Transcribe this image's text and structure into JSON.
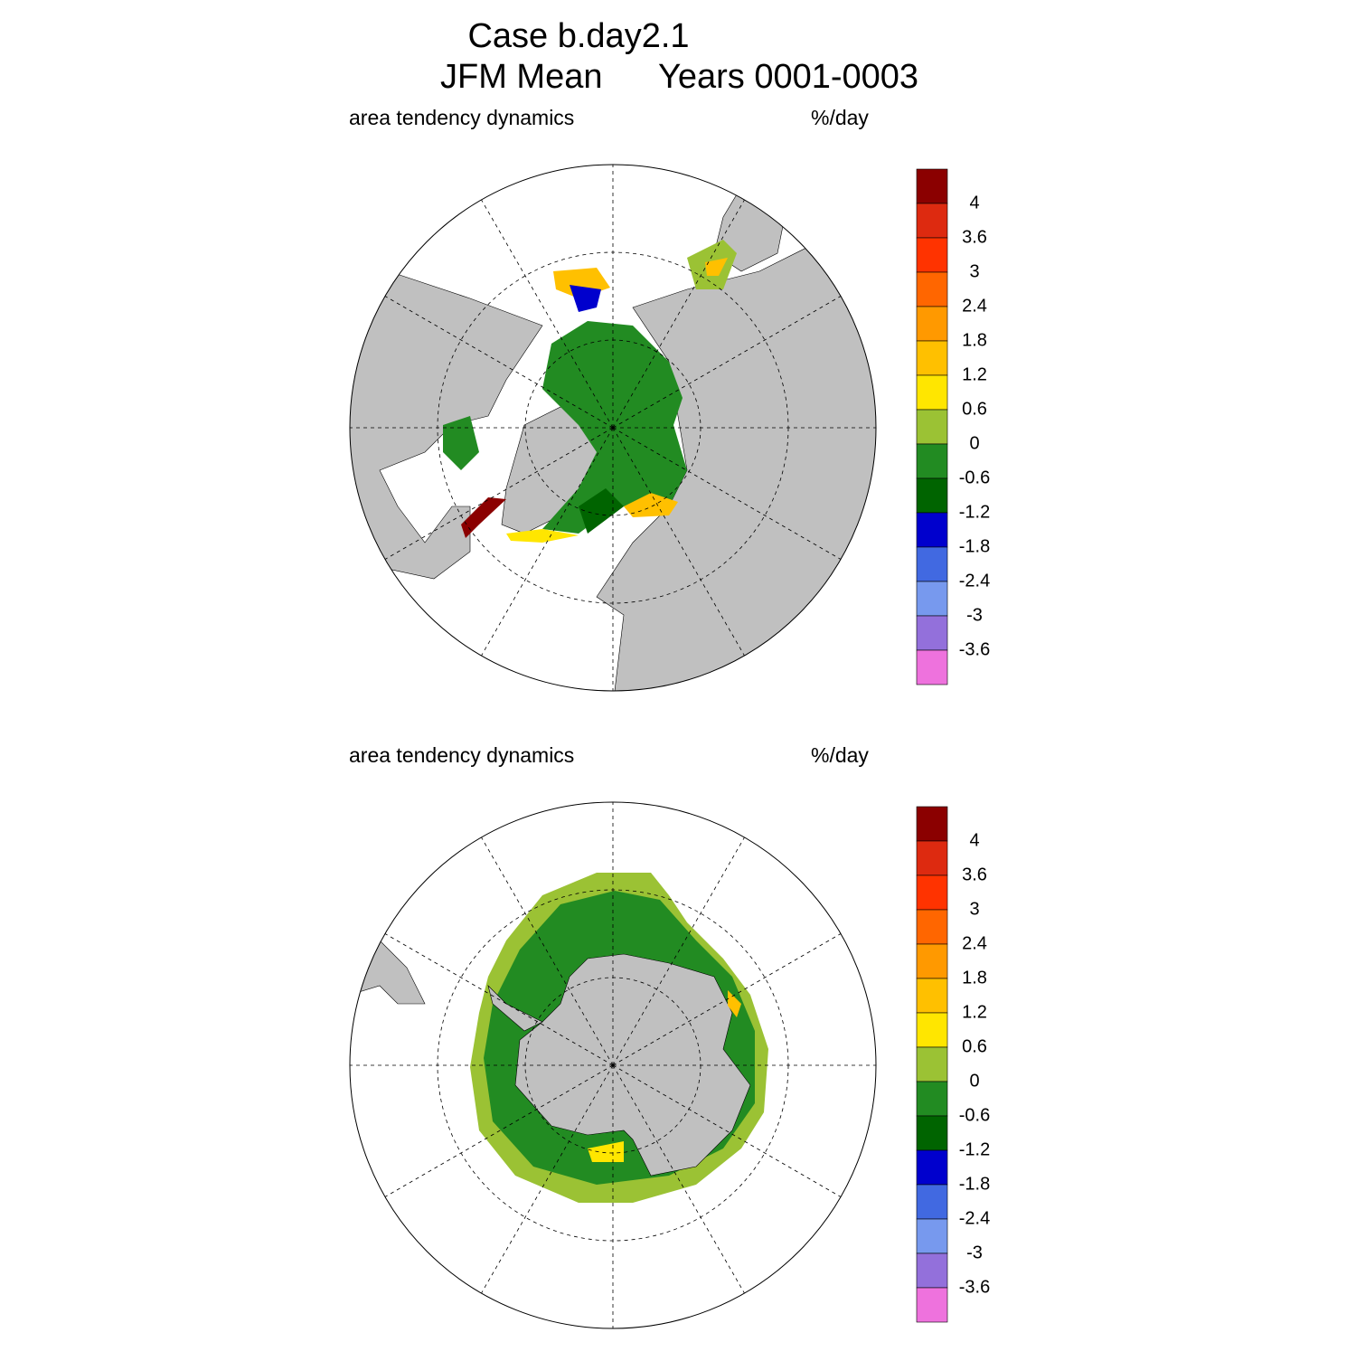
{
  "header": {
    "title": "Case b.day2.1",
    "season": "JFM Mean",
    "years": "Years 0001-0003"
  },
  "panels": [
    {
      "left_label": "area tendency dynamics",
      "right_label": "%/day",
      "colorbar": {
        "colors": [
          "#8b0000",
          "#dd2a10",
          "#ff3300",
          "#ff6600",
          "#ff9900",
          "#ffc000",
          "#ffe600",
          "#9bc234",
          "#228b22",
          "#006400",
          "#0000cd",
          "#4169e1",
          "#7799ee",
          "#9370db",
          "#ee72dd"
        ],
        "levels": [
          4,
          3.6,
          3,
          2.4,
          1.8,
          1.2,
          0.6,
          0,
          -0.6,
          -1.2,
          -1.8,
          -2.4,
          -3,
          -3.6
        ]
      }
    },
    {
      "left_label": "area tendency dynamics",
      "right_label": "%/day",
      "colorbar": {
        "colors": [
          "#8b0000",
          "#dd2a10",
          "#ff3300",
          "#ff6600",
          "#ff9900",
          "#ffc000",
          "#ffe600",
          "#9bc234",
          "#228b22",
          "#006400",
          "#0000cd",
          "#4169e1",
          "#7799ee",
          "#9370db",
          "#ee72dd"
        ],
        "levels": [
          4,
          3.6,
          3,
          2.4,
          1.8,
          1.2,
          0.6,
          0,
          -0.6,
          -1.2,
          -1.8,
          -2.4,
          -3,
          -3.6
        ]
      }
    }
  ]
}
